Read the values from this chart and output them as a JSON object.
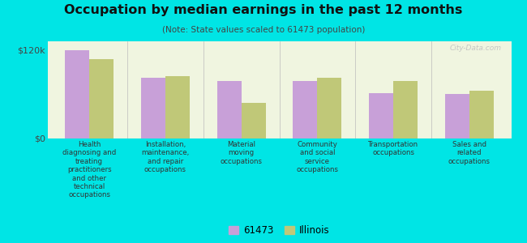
{
  "title": "Occupation by median earnings in the past 12 months",
  "subtitle": "(Note: State values scaled to 61473 population)",
  "background_color": "#00e5e5",
  "plot_bg_color": "#f0f5e0",
  "categories": [
    "Health\ndiagnosing and\ntreating\npractitioners\nand other\ntechnical\noccupations",
    "Installation,\nmaintenance,\nand repair\noccupations",
    "Material\nmoving\noccupations",
    "Community\nand social\nservice\noccupations",
    "Transportation\noccupations",
    "Sales and\nrelated\noccupations"
  ],
  "values_61473": [
    120000,
    82000,
    78000,
    78000,
    62000,
    60000
  ],
  "values_illinois": [
    108000,
    85000,
    48000,
    82000,
    78000,
    65000
  ],
  "color_61473": "#c8a0d8",
  "color_illinois": "#c0c878",
  "ylim": [
    0,
    132000
  ],
  "yticks": [
    0,
    120000
  ],
  "ytick_labels": [
    "$0",
    "$120k"
  ],
  "legend_labels": [
    "61473",
    "Illinois"
  ],
  "bar_width": 0.32,
  "watermark": "City-Data.com"
}
